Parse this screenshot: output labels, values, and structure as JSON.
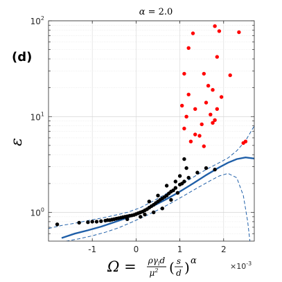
{
  "chart_data": {
    "type": "scatter",
    "title_parts": {
      "symbol": "α",
      "rest": " = 2.0"
    },
    "panel_label": "(d)",
    "ylabel_symbol": "ε",
    "xlabel": {
      "lhs": "Ω =",
      "frac_num": "ργ",
      "frac_num_sub": "i",
      "frac_num_tail": "d",
      "frac_den": "μ",
      "frac_den_sup": "2",
      "paren_open": "(",
      "inner_num": "s",
      "inner_den": "d",
      "paren_close": ")",
      "power": "α"
    },
    "x_exponent_base": "×10",
    "x_exponent_power": "-3",
    "xlim": [
      -2.0,
      2.7
    ],
    "ylim_log10": [
      -0.3,
      2.0
    ],
    "yscale": "log",
    "grid": true,
    "x_ticks": [
      -1,
      0,
      1,
      2
    ],
    "x_tick_labels": [
      "-1",
      "0",
      "1",
      "2"
    ],
    "y_ticks": [
      1,
      10,
      100
    ],
    "y_tick_bases": [
      "10",
      "10",
      "10"
    ],
    "y_tick_powers": [
      "0",
      "1",
      "2"
    ],
    "series": [
      {
        "color": "#000000",
        "points": [
          [
            -1.8,
            0.75
          ],
          [
            -1.3,
            0.78
          ],
          [
            -1.1,
            0.79
          ],
          [
            -1.0,
            0.8
          ],
          [
            -0.9,
            0.8
          ],
          [
            -0.8,
            0.81
          ],
          [
            -0.7,
            0.82
          ],
          [
            -0.65,
            0.83
          ],
          [
            -0.6,
            0.83
          ],
          [
            -0.55,
            0.84
          ],
          [
            -0.5,
            0.85
          ],
          [
            -0.45,
            0.86
          ],
          [
            -0.4,
            0.87
          ],
          [
            -0.35,
            0.88
          ],
          [
            -0.3,
            0.89
          ],
          [
            -0.25,
            0.9
          ],
          [
            -0.2,
            0.91
          ],
          [
            -0.15,
            0.92
          ],
          [
            -0.1,
            0.93
          ],
          [
            -0.05,
            0.94
          ],
          [
            0.0,
            0.96
          ],
          [
            0.05,
            0.98
          ],
          [
            0.1,
            1.0
          ],
          [
            0.15,
            1.02
          ],
          [
            0.2,
            1.05
          ],
          [
            0.25,
            1.08
          ],
          [
            0.3,
            1.12
          ],
          [
            0.35,
            1.16
          ],
          [
            0.4,
            1.2
          ],
          [
            0.45,
            1.25
          ],
          [
            0.5,
            1.3
          ],
          [
            0.55,
            1.35
          ],
          [
            0.6,
            1.4
          ],
          [
            0.65,
            1.45
          ],
          [
            0.7,
            1.5
          ],
          [
            0.75,
            1.58
          ],
          [
            0.8,
            1.65
          ],
          [
            0.85,
            1.7
          ],
          [
            0.9,
            1.8
          ],
          [
            1.0,
            1.95
          ],
          [
            1.1,
            2.1
          ],
          [
            1.2,
            2.3
          ],
          [
            1.4,
            2.6
          ],
          [
            1.6,
            2.9
          ],
          [
            1.8,
            2.8
          ],
          [
            -0.2,
            0.85
          ],
          [
            0.1,
            0.9
          ],
          [
            0.3,
            1.3
          ],
          [
            0.5,
            1.5
          ],
          [
            0.7,
            1.9
          ],
          [
            0.9,
            2.1
          ],
          [
            1.0,
            2.4
          ],
          [
            1.15,
            2.9
          ],
          [
            1.1,
            3.6
          ],
          [
            1.05,
            2.0
          ],
          [
            0.6,
            1.1
          ],
          [
            0.4,
            1.0
          ],
          [
            0.2,
            0.95
          ],
          [
            0.8,
            1.35
          ],
          [
            0.95,
            1.6
          ]
        ]
      },
      {
        "color": "#ff0000",
        "points": [
          [
            1.8,
            88
          ],
          [
            1.9,
            78
          ],
          [
            2.35,
            76
          ],
          [
            1.3,
            74
          ],
          [
            1.2,
            52
          ],
          [
            1.85,
            42
          ],
          [
            1.1,
            28
          ],
          [
            1.55,
            28
          ],
          [
            2.15,
            27
          ],
          [
            1.65,
            21
          ],
          [
            1.75,
            19
          ],
          [
            1.2,
            17
          ],
          [
            1.95,
            16
          ],
          [
            1.6,
            14
          ],
          [
            1.05,
            13
          ],
          [
            1.35,
            12
          ],
          [
            1.85,
            12
          ],
          [
            1.7,
            10.5
          ],
          [
            1.15,
            10
          ],
          [
            1.8,
            9.2
          ],
          [
            1.75,
            8.6
          ],
          [
            1.5,
            8.3
          ],
          [
            1.1,
            7.5
          ],
          [
            1.35,
            6.5
          ],
          [
            1.45,
            6.3
          ],
          [
            1.25,
            5.5
          ],
          [
            1.55,
            4.9
          ],
          [
            2.45,
            5.3
          ],
          [
            2.5,
            5.5
          ]
        ]
      }
    ],
    "fit_curves": [
      {
        "style": "solid",
        "color": "#1f5fa8",
        "x": [
          -1.7,
          -1.4,
          -1.1,
          -0.8,
          -0.5,
          -0.2,
          0.1,
          0.4,
          0.7,
          1.0,
          1.3,
          1.6,
          1.9,
          2.1,
          2.3,
          2.5,
          2.7
        ],
        "y": [
          0.54,
          0.6,
          0.65,
          0.71,
          0.79,
          0.88,
          1.0,
          1.17,
          1.38,
          1.65,
          2.0,
          2.45,
          2.95,
          3.3,
          3.6,
          3.75,
          3.65
        ]
      },
      {
        "style": "dashed",
        "color": "#1f5fa8",
        "x": [
          -2.0,
          -1.7,
          -1.4,
          -1.1,
          -0.8,
          -0.5,
          -0.2,
          0.1,
          0.4,
          0.7,
          1.0,
          1.3,
          1.6,
          1.9,
          2.1,
          2.3,
          2.5,
          2.7
        ],
        "y": [
          0.68,
          0.73,
          0.77,
          0.82,
          0.87,
          0.93,
          1.0,
          1.12,
          1.32,
          1.58,
          1.92,
          2.32,
          2.8,
          3.3,
          3.7,
          4.4,
          5.6,
          8.0
        ]
      },
      {
        "style": "dashed",
        "color": "#1f5fa8",
        "x": [
          -1.6,
          -1.3,
          -1.0,
          -0.7,
          -0.4,
          -0.1,
          0.2,
          0.5,
          0.8,
          1.1,
          1.4,
          1.7,
          1.9,
          2.1,
          2.3,
          2.45,
          2.55,
          2.6
        ],
        "y": [
          0.5,
          0.53,
          0.57,
          0.62,
          0.69,
          0.79,
          0.91,
          1.06,
          1.25,
          1.5,
          1.8,
          2.15,
          2.4,
          2.55,
          2.3,
          1.5,
          0.8,
          0.5
        ]
      }
    ]
  }
}
